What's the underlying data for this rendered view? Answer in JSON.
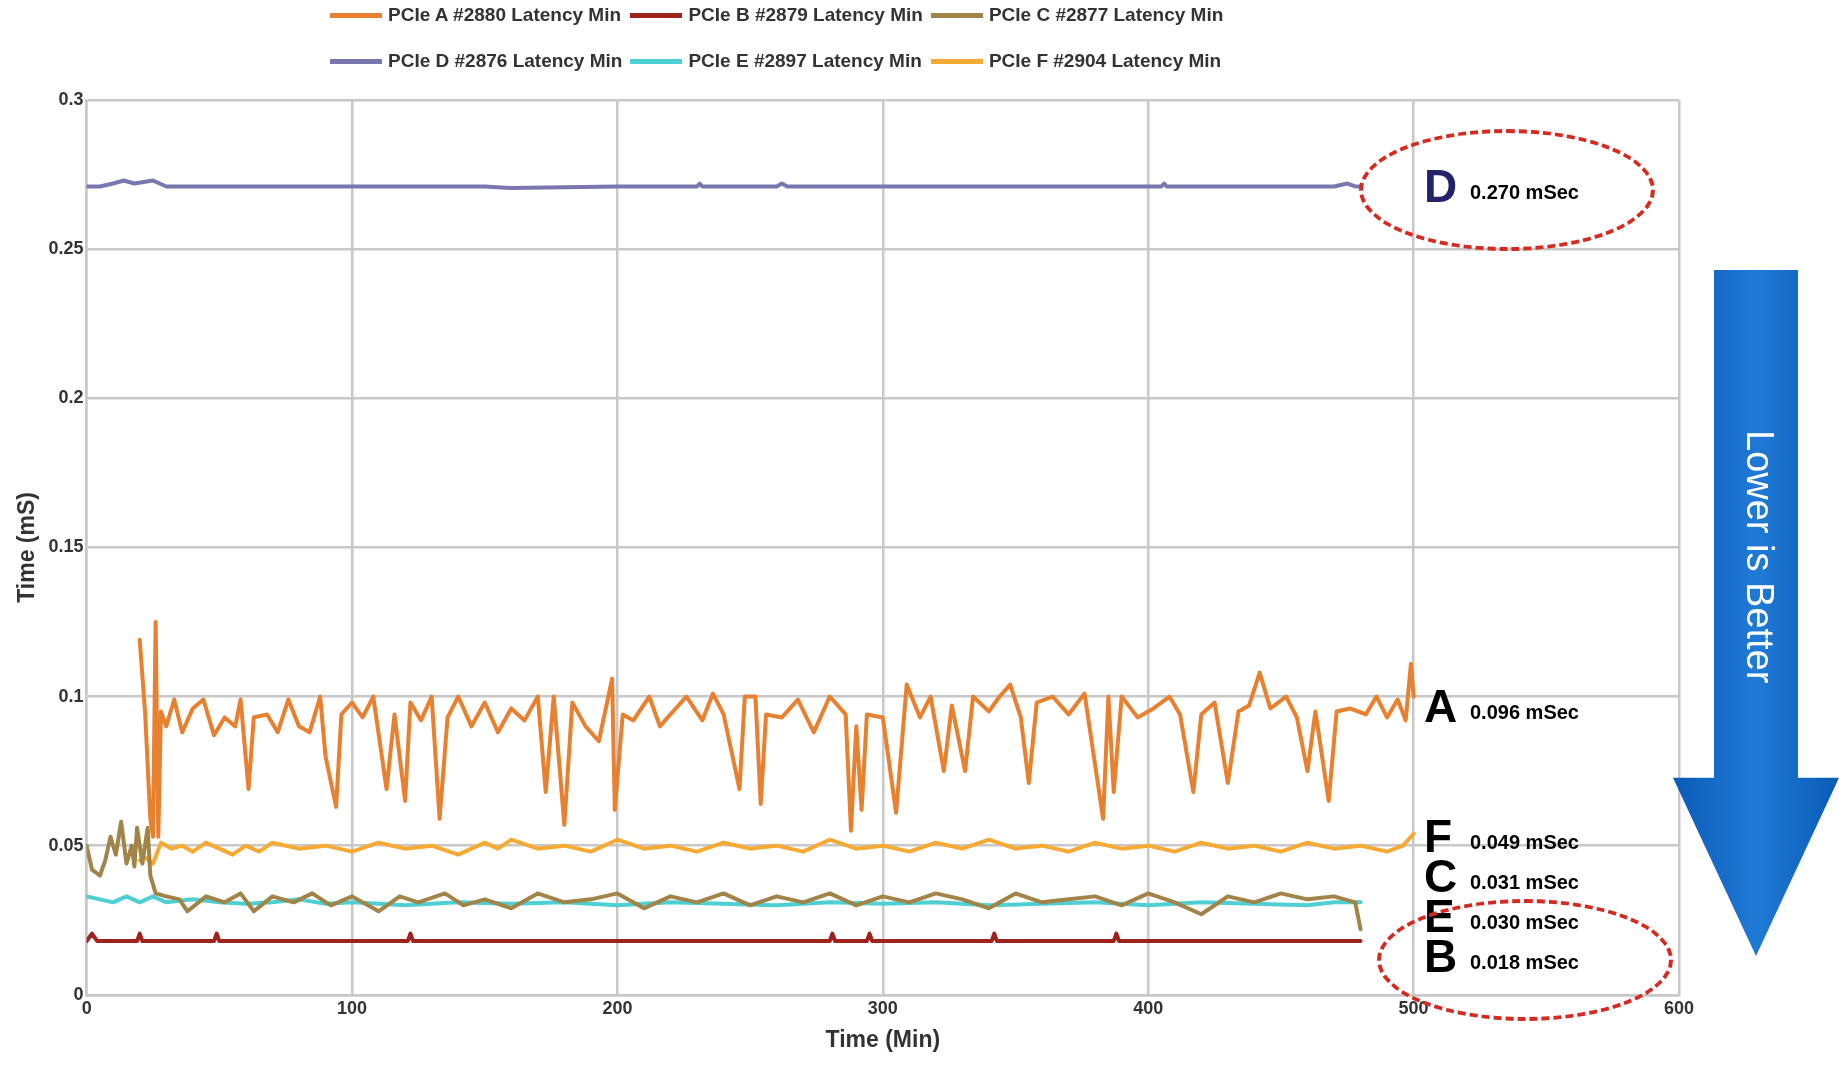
{
  "chart_data": {
    "type": "line",
    "xlabel": "Time (Min)",
    "ylabel": "Time (mS)",
    "xlim": [
      0,
      600
    ],
    "xticks": [
      0,
      100,
      200,
      300,
      400,
      500,
      600
    ],
    "ylim": [
      0,
      0.3
    ],
    "yticks": [
      0,
      0.05,
      0.1,
      0.15,
      0.2,
      0.25,
      0.3
    ],
    "grid": true,
    "legend": "top",
    "marker": "none",
    "line_style": "solid",
    "series": [
      {
        "name": "PCIe A #2880 Latency Min",
        "color": "#e8802f",
        "x": [
          20,
          22,
          24,
          25,
          26,
          27,
          28,
          30,
          33,
          36,
          40,
          44,
          48,
          52,
          56,
          58,
          61,
          63,
          68,
          72,
          76,
          80,
          84,
          88,
          90,
          94,
          96,
          100,
          104,
          108,
          113,
          116,
          120,
          122,
          126,
          130,
          133,
          136,
          140,
          145,
          150,
          155,
          160,
          165,
          170,
          173,
          176,
          180,
          183,
          188,
          193,
          198,
          199,
          202,
          206,
          212,
          216,
          220,
          226,
          232,
          236,
          240,
          246,
          248,
          252,
          254,
          256,
          262,
          268,
          274,
          280,
          286,
          288,
          290,
          292,
          294,
          300,
          305,
          309,
          314,
          318,
          323,
          326,
          331,
          334,
          340,
          344,
          348,
          352,
          355,
          358,
          364,
          370,
          376,
          383,
          385,
          387,
          390,
          396,
          402,
          408,
          412,
          417,
          420,
          425,
          430,
          434,
          438,
          442,
          446,
          452,
          456,
          460,
          463,
          468,
          471,
          476,
          482,
          486,
          490,
          494,
          497,
          499,
          500
        ],
        "values": [
          0.119,
          0.095,
          0.059,
          0.053,
          0.125,
          0.053,
          0.095,
          0.09,
          0.099,
          0.088,
          0.096,
          0.099,
          0.087,
          0.093,
          0.09,
          0.099,
          0.069,
          0.093,
          0.094,
          0.088,
          0.099,
          0.09,
          0.088,
          0.1,
          0.08,
          0.063,
          0.094,
          0.098,
          0.093,
          0.1,
          0.069,
          0.094,
          0.065,
          0.098,
          0.092,
          0.1,
          0.059,
          0.093,
          0.1,
          0.09,
          0.098,
          0.088,
          0.096,
          0.092,
          0.1,
          0.068,
          0.1,
          0.057,
          0.098,
          0.09,
          0.085,
          0.106,
          0.062,
          0.094,
          0.092,
          0.1,
          0.09,
          0.094,
          0.1,
          0.092,
          0.101,
          0.094,
          0.069,
          0.1,
          0.1,
          0.064,
          0.094,
          0.093,
          0.099,
          0.088,
          0.1,
          0.094,
          0.055,
          0.09,
          0.062,
          0.094,
          0.093,
          0.061,
          0.104,
          0.093,
          0.1,
          0.075,
          0.097,
          0.075,
          0.1,
          0.095,
          0.1,
          0.104,
          0.093,
          0.071,
          0.098,
          0.1,
          0.094,
          0.101,
          0.059,
          0.1,
          0.068,
          0.1,
          0.093,
          0.096,
          0.1,
          0.094,
          0.068,
          0.094,
          0.098,
          0.071,
          0.095,
          0.097,
          0.108,
          0.096,
          0.1,
          0.093,
          0.075,
          0.095,
          0.065,
          0.095,
          0.096,
          0.094,
          0.1,
          0.093,
          0.099,
          0.092,
          0.111,
          0.1
        ]
      },
      {
        "name": "PCIe B #2879 Latency Min",
        "color": "#a0221d",
        "x": [
          0,
          2,
          4,
          19,
          20,
          21,
          48,
          49,
          50,
          121,
          122,
          123,
          280,
          281,
          282,
          294,
          295,
          296,
          341,
          342,
          343,
          387,
          388,
          389,
          480
        ],
        "values": [
          0.018,
          0.0205,
          0.018,
          0.018,
          0.0205,
          0.018,
          0.018,
          0.0205,
          0.018,
          0.018,
          0.0205,
          0.018,
          0.018,
          0.0205,
          0.018,
          0.018,
          0.0205,
          0.018,
          0.018,
          0.0205,
          0.018,
          0.018,
          0.0205,
          0.018,
          0.018
        ]
      },
      {
        "name": "PCIe C #2877 Latency Min",
        "color": "#a08448",
        "x": [
          0,
          2,
          5,
          7,
          9,
          11,
          13,
          15,
          17,
          18,
          19,
          21,
          23,
          24,
          26,
          30,
          35,
          38,
          45,
          52,
          58,
          63,
          70,
          78,
          85,
          92,
          100,
          110,
          118,
          125,
          135,
          142,
          150,
          160,
          170,
          180,
          190,
          200,
          210,
          220,
          230,
          240,
          250,
          260,
          270,
          280,
          290,
          300,
          310,
          320,
          330,
          340,
          350,
          360,
          370,
          380,
          390,
          400,
          410,
          420,
          430,
          440,
          450,
          460,
          470,
          478,
          480
        ],
        "values": [
          0.05,
          0.042,
          0.04,
          0.045,
          0.053,
          0.047,
          0.058,
          0.044,
          0.05,
          0.043,
          0.056,
          0.044,
          0.056,
          0.04,
          0.034,
          0.033,
          0.032,
          0.028,
          0.033,
          0.031,
          0.034,
          0.028,
          0.033,
          0.031,
          0.034,
          0.03,
          0.033,
          0.028,
          0.033,
          0.031,
          0.034,
          0.03,
          0.032,
          0.029,
          0.034,
          0.031,
          0.032,
          0.034,
          0.029,
          0.033,
          0.031,
          0.034,
          0.03,
          0.033,
          0.031,
          0.034,
          0.03,
          0.033,
          0.031,
          0.034,
          0.032,
          0.029,
          0.034,
          0.031,
          0.032,
          0.033,
          0.03,
          0.034,
          0.031,
          0.027,
          0.033,
          0.031,
          0.034,
          0.032,
          0.033,
          0.031,
          0.022
        ]
      },
      {
        "name": "PCIe D #2876 Latency Min",
        "color": "#7b76b0",
        "x": [
          0,
          5,
          10,
          14,
          18,
          25,
          30,
          60,
          90,
          120,
          150,
          160,
          200,
          230,
          231,
          232,
          260,
          262,
          264,
          300,
          340,
          380,
          405,
          406,
          407,
          440,
          470,
          475,
          478,
          480
        ],
        "values": [
          0.271,
          0.271,
          0.272,
          0.273,
          0.272,
          0.273,
          0.271,
          0.271,
          0.271,
          0.271,
          0.271,
          0.2705,
          0.271,
          0.271,
          0.272,
          0.271,
          0.271,
          0.272,
          0.271,
          0.271,
          0.271,
          0.271,
          0.271,
          0.272,
          0.271,
          0.271,
          0.271,
          0.272,
          0.271,
          0.271
        ]
      },
      {
        "name": "PCIe E #2897 Latency Min",
        "color": "#4dcfd4",
        "x": [
          0,
          5,
          10,
          15,
          20,
          25,
          30,
          40,
          50,
          60,
          70,
          80,
          90,
          100,
          120,
          140,
          160,
          180,
          200,
          220,
          240,
          260,
          280,
          300,
          320,
          340,
          360,
          380,
          400,
          420,
          440,
          460,
          470,
          480
        ],
        "values": [
          0.033,
          0.032,
          0.031,
          0.033,
          0.031,
          0.033,
          0.031,
          0.032,
          0.031,
          0.0305,
          0.031,
          0.032,
          0.0305,
          0.031,
          0.03,
          0.031,
          0.0305,
          0.031,
          0.03,
          0.031,
          0.0305,
          0.03,
          0.031,
          0.0305,
          0.031,
          0.03,
          0.0305,
          0.031,
          0.03,
          0.031,
          0.0305,
          0.03,
          0.031,
          0.031
        ]
      },
      {
        "name": "PCIe F #2904 Latency Min",
        "color": "#f6a933",
        "x": [
          20,
          22,
          25,
          28,
          32,
          36,
          40,
          45,
          50,
          55,
          60,
          65,
          70,
          80,
          90,
          100,
          110,
          120,
          130,
          140,
          150,
          155,
          160,
          170,
          180,
          190,
          200,
          210,
          220,
          230,
          240,
          250,
          260,
          270,
          280,
          290,
          300,
          310,
          320,
          330,
          340,
          350,
          360,
          370,
          380,
          390,
          400,
          410,
          420,
          430,
          440,
          450,
          460,
          470,
          480,
          490,
          496,
          500
        ],
        "values": [
          0.045,
          0.046,
          0.044,
          0.051,
          0.049,
          0.05,
          0.048,
          0.051,
          0.049,
          0.047,
          0.05,
          0.048,
          0.051,
          0.049,
          0.05,
          0.048,
          0.051,
          0.049,
          0.05,
          0.047,
          0.051,
          0.049,
          0.052,
          0.049,
          0.05,
          0.048,
          0.052,
          0.049,
          0.05,
          0.048,
          0.051,
          0.049,
          0.05,
          0.048,
          0.052,
          0.049,
          0.05,
          0.048,
          0.051,
          0.049,
          0.052,
          0.049,
          0.05,
          0.048,
          0.051,
          0.049,
          0.05,
          0.048,
          0.051,
          0.049,
          0.05,
          0.048,
          0.051,
          0.049,
          0.05,
          0.048,
          0.05,
          0.054
        ]
      }
    ],
    "annotations": [
      "D",
      "0.270 mSec",
      "A",
      "0.096 mSec",
      "F",
      "0.049 mSec",
      "C",
      "0.031 mSec",
      "E",
      "0.030 mSec",
      "B",
      "0.018 mSec",
      "Lower is Better"
    ]
  }
}
